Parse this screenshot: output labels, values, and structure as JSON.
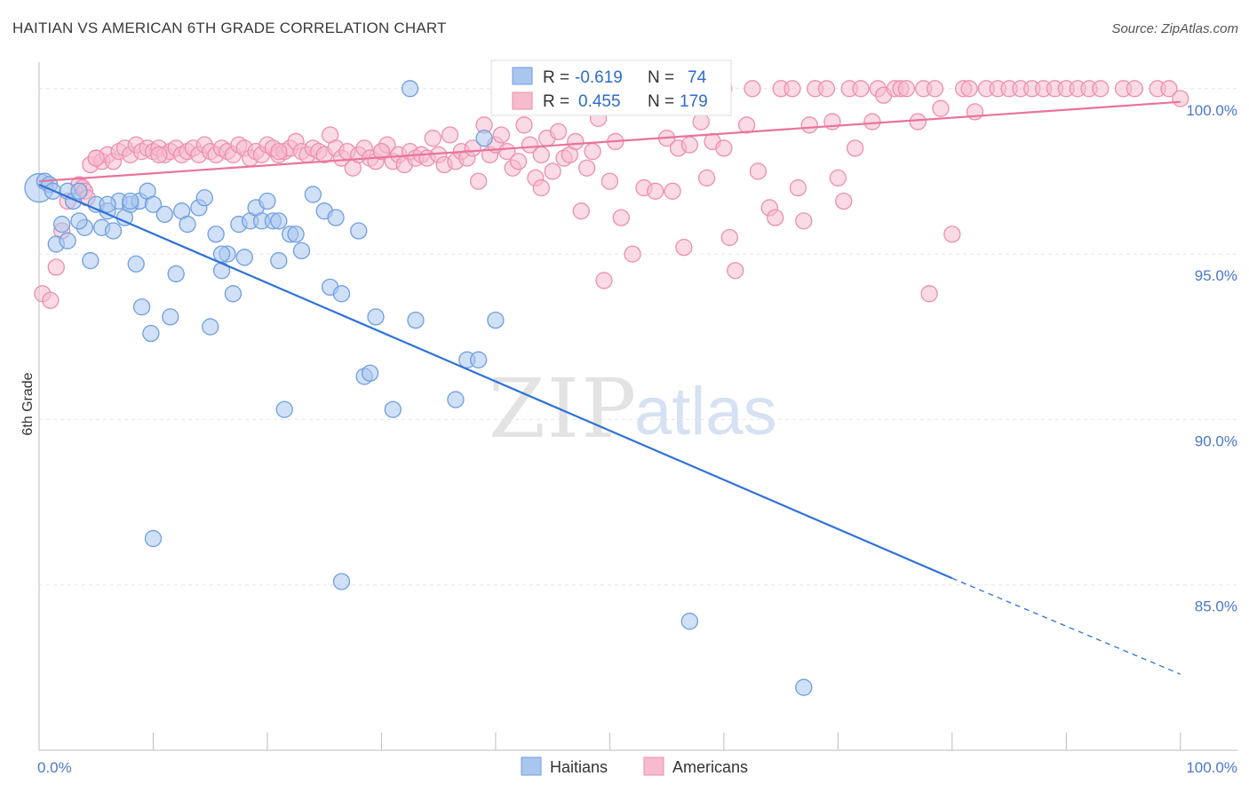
{
  "title": "HAITIAN VS AMERICAN 6TH GRADE CORRELATION CHART",
  "source": "Source: ZipAtlas.com",
  "watermark": {
    "part1": "ZIP",
    "part2": "atlas"
  },
  "colors": {
    "blue_fill": "#a9c6ef",
    "blue_stroke": "#6f9fe0",
    "blue_line": "#2f72d6",
    "pink_fill": "#f6bccd",
    "pink_stroke": "#ec8fae",
    "pink_line": "#e9739b",
    "grid": "#e6e6e6",
    "axis_label": "#4a78c8"
  },
  "legend": {
    "rows": [
      {
        "r_label": "R =",
        "r_value": "-0.619",
        "n_label": "N =",
        "n_value": "74",
        "series": "blue"
      },
      {
        "r_label": "R =",
        "r_value": "0.455",
        "n_label": "N =",
        "n_value": "179",
        "series": "pink"
      }
    ]
  },
  "bottom_legend": [
    {
      "label": "Haitians",
      "series": "blue"
    },
    {
      "label": "Americans",
      "series": "pink"
    }
  ],
  "chart_data": {
    "type": "scatter",
    "title": "HAITIAN VS AMERICAN 6TH GRADE CORRELATION CHART",
    "xlabel": "",
    "ylabel": "6th Grade",
    "xlim": [
      0,
      105
    ],
    "ylim": [
      80,
      100.8
    ],
    "x_tick_labels": [
      "0.0%",
      "100.0%"
    ],
    "y_ticks": [
      85,
      90,
      95,
      100
    ],
    "y_tick_labels": [
      "85.0%",
      "90.0%",
      "95.0%",
      "100.0%"
    ],
    "grid": true,
    "series": [
      {
        "name": "Haitians",
        "color": "blue",
        "trend": {
          "x0": 0,
          "y0": 97.1,
          "x1": 80,
          "y1": 85.2,
          "dash_to_x": 100,
          "dash_to_y": 82.3
        },
        "points": [
          [
            0,
            97.0
          ],
          [
            0.5,
            97.2
          ],
          [
            0.9,
            97.1
          ],
          [
            1.2,
            96.9
          ],
          [
            1.5,
            95.3
          ],
          [
            2.0,
            95.9
          ],
          [
            2.5,
            95.4
          ],
          [
            2.5,
            96.9
          ],
          [
            3.0,
            96.6
          ],
          [
            3.5,
            96.9
          ],
          [
            4.0,
            95.8
          ],
          [
            4.5,
            94.8
          ],
          [
            5.0,
            96.5
          ],
          [
            5.5,
            95.8
          ],
          [
            6.0,
            96.3
          ],
          [
            6.5,
            95.7
          ],
          [
            7.0,
            96.6
          ],
          [
            7.5,
            96.1
          ],
          [
            8.0,
            96.5
          ],
          [
            8.5,
            94.7
          ],
          [
            8.8,
            96.6
          ],
          [
            9.0,
            93.4
          ],
          [
            9.5,
            96.9
          ],
          [
            9.8,
            92.6
          ],
          [
            10.0,
            96.5
          ],
          [
            11.0,
            96.2
          ],
          [
            12.0,
            94.4
          ],
          [
            12.5,
            96.3
          ],
          [
            13.0,
            95.9
          ],
          [
            14.0,
            96.4
          ],
          [
            14.5,
            96.7
          ],
          [
            15.0,
            92.8
          ],
          [
            15.5,
            95.6
          ],
          [
            16.0,
            94.5
          ],
          [
            16.5,
            95.0
          ],
          [
            17.0,
            93.8
          ],
          [
            17.5,
            95.9
          ],
          [
            18.0,
            94.9
          ],
          [
            18.5,
            96.0
          ],
          [
            19.0,
            96.4
          ],
          [
            19.5,
            96.0
          ],
          [
            20.0,
            96.6
          ],
          [
            20.5,
            96.0
          ],
          [
            21.0,
            96.0
          ],
          [
            22.0,
            95.6
          ],
          [
            22.5,
            95.6
          ],
          [
            23.0,
            95.1
          ],
          [
            24.0,
            96.8
          ],
          [
            25.0,
            96.3
          ],
          [
            25.5,
            94.0
          ],
          [
            26.0,
            96.1
          ],
          [
            26.5,
            93.8
          ],
          [
            28.0,
            95.7
          ],
          [
            28.5,
            91.3
          ],
          [
            29.0,
            91.4
          ],
          [
            29.5,
            93.1
          ],
          [
            31.0,
            90.3
          ],
          [
            32.5,
            100.0
          ],
          [
            33.0,
            93.0
          ],
          [
            36.5,
            90.6
          ],
          [
            37.5,
            91.8
          ],
          [
            38.5,
            91.8
          ],
          [
            39.0,
            98.5
          ],
          [
            40.0,
            93.0
          ],
          [
            10.0,
            86.4
          ],
          [
            21.5,
            90.3
          ],
          [
            26.5,
            85.1
          ],
          [
            57.0,
            83.9
          ],
          [
            67.0,
            81.9
          ],
          [
            6.0,
            96.5
          ],
          [
            8.0,
            96.6
          ],
          [
            11.5,
            93.1
          ],
          [
            16.0,
            95.0
          ],
          [
            21.0,
            94.8
          ],
          [
            3.5,
            96.0
          ]
        ]
      },
      {
        "name": "Americans",
        "color": "pink",
        "trend": {
          "x0": 0,
          "y0": 97.2,
          "x1": 100,
          "y1": 99.6
        },
        "points": [
          [
            0.3,
            93.8
          ],
          [
            1.0,
            93.6
          ],
          [
            1.5,
            94.6
          ],
          [
            2.0,
            95.7
          ],
          [
            2.5,
            96.6
          ],
          [
            3.5,
            97.1
          ],
          [
            3.8,
            97.0
          ],
          [
            4.0,
            96.9
          ],
          [
            4.2,
            96.7
          ],
          [
            4.5,
            97.7
          ],
          [
            5.0,
            97.9
          ],
          [
            5.5,
            97.8
          ],
          [
            6.0,
            98.0
          ],
          [
            6.5,
            97.8
          ],
          [
            7.0,
            98.1
          ],
          [
            7.5,
            98.2
          ],
          [
            8.0,
            98.0
          ],
          [
            8.5,
            98.3
          ],
          [
            9.0,
            98.1
          ],
          [
            9.5,
            98.2
          ],
          [
            10.0,
            98.1
          ],
          [
            10.5,
            98.2
          ],
          [
            11.0,
            98.0
          ],
          [
            11.5,
            98.1
          ],
          [
            12.0,
            98.2
          ],
          [
            12.5,
            98.0
          ],
          [
            13.0,
            98.1
          ],
          [
            13.5,
            98.2
          ],
          [
            14.0,
            98.0
          ],
          [
            14.5,
            98.3
          ],
          [
            15.0,
            98.1
          ],
          [
            15.5,
            98.0
          ],
          [
            16.0,
            98.2
          ],
          [
            16.5,
            98.1
          ],
          [
            17.0,
            98.0
          ],
          [
            17.5,
            98.3
          ],
          [
            18.0,
            98.2
          ],
          [
            18.5,
            97.9
          ],
          [
            19.0,
            98.1
          ],
          [
            19.5,
            98.0
          ],
          [
            20.0,
            98.3
          ],
          [
            20.5,
            98.2
          ],
          [
            21.0,
            98.0
          ],
          [
            21.5,
            98.1
          ],
          [
            22.0,
            98.2
          ],
          [
            22.5,
            98.4
          ],
          [
            23.0,
            98.1
          ],
          [
            23.5,
            98.0
          ],
          [
            24.0,
            98.2
          ],
          [
            24.5,
            98.1
          ],
          [
            25.0,
            98.0
          ],
          [
            25.5,
            98.6
          ],
          [
            26.0,
            98.2
          ],
          [
            26.5,
            97.9
          ],
          [
            27.0,
            98.1
          ],
          [
            27.5,
            97.6
          ],
          [
            28.0,
            98.0
          ],
          [
            28.5,
            98.2
          ],
          [
            29.0,
            97.9
          ],
          [
            29.5,
            97.8
          ],
          [
            30.0,
            98.1
          ],
          [
            30.5,
            98.3
          ],
          [
            31.0,
            97.8
          ],
          [
            31.5,
            98.0
          ],
          [
            32.0,
            97.7
          ],
          [
            32.5,
            98.1
          ],
          [
            33.0,
            97.9
          ],
          [
            33.5,
            98.0
          ],
          [
            34.0,
            97.9
          ],
          [
            34.5,
            98.5
          ],
          [
            35.0,
            98.0
          ],
          [
            35.5,
            97.7
          ],
          [
            36.0,
            98.6
          ],
          [
            36.5,
            97.8
          ],
          [
            37.0,
            98.1
          ],
          [
            37.5,
            97.9
          ],
          [
            38.0,
            98.2
          ],
          [
            38.5,
            97.2
          ],
          [
            39.0,
            98.9
          ],
          [
            39.5,
            98.0
          ],
          [
            40.0,
            98.3
          ],
          [
            40.5,
            98.6
          ],
          [
            41.0,
            98.1
          ],
          [
            41.5,
            97.6
          ],
          [
            42.0,
            97.8
          ],
          [
            42.5,
            98.9
          ],
          [
            43.0,
            98.3
          ],
          [
            43.5,
            97.3
          ],
          [
            44.0,
            97.0
          ],
          [
            44.5,
            98.5
          ],
          [
            45.0,
            97.5
          ],
          [
            45.5,
            98.7
          ],
          [
            46.0,
            97.9
          ],
          [
            46.5,
            98.0
          ],
          [
            47.0,
            98.4
          ],
          [
            47.5,
            96.3
          ],
          [
            48.0,
            97.6
          ],
          [
            48.5,
            98.1
          ],
          [
            49.0,
            99.1
          ],
          [
            49.5,
            94.2
          ],
          [
            50.0,
            97.2
          ],
          [
            50.5,
            98.4
          ],
          [
            51.0,
            96.1
          ],
          [
            52.0,
            95.0
          ],
          [
            53.0,
            97.0
          ],
          [
            54.0,
            96.9
          ],
          [
            55.0,
            98.5
          ],
          [
            55.5,
            96.9
          ],
          [
            56.0,
            98.2
          ],
          [
            56.5,
            95.2
          ],
          [
            57.0,
            98.3
          ],
          [
            58.0,
            99.0
          ],
          [
            58.5,
            97.3
          ],
          [
            59.0,
            98.4
          ],
          [
            60.0,
            98.2
          ],
          [
            60.5,
            95.5
          ],
          [
            61.0,
            94.5
          ],
          [
            62.0,
            98.9
          ],
          [
            63.0,
            97.5
          ],
          [
            64.0,
            96.4
          ],
          [
            64.5,
            96.1
          ],
          [
            65.0,
            100.0
          ],
          [
            66.0,
            100.0
          ],
          [
            66.5,
            97.0
          ],
          [
            67.0,
            96.0
          ],
          [
            67.5,
            98.9
          ],
          [
            68.0,
            100.0
          ],
          [
            69.0,
            100.0
          ],
          [
            69.5,
            99.0
          ],
          [
            70.0,
            97.3
          ],
          [
            70.5,
            96.6
          ],
          [
            71.0,
            100.0
          ],
          [
            71.5,
            98.2
          ],
          [
            72.0,
            100.0
          ],
          [
            73.0,
            99.0
          ],
          [
            73.5,
            100.0
          ],
          [
            74.0,
            99.8
          ],
          [
            75.0,
            100.0
          ],
          [
            75.5,
            100.0
          ],
          [
            76.0,
            100.0
          ],
          [
            77.0,
            99.0
          ],
          [
            77.5,
            100.0
          ],
          [
            78.0,
            93.8
          ],
          [
            78.5,
            100.0
          ],
          [
            79.0,
            99.4
          ],
          [
            80.0,
            95.6
          ],
          [
            81.0,
            100.0
          ],
          [
            81.5,
            100.0
          ],
          [
            82.0,
            99.3
          ],
          [
            83.0,
            100.0
          ],
          [
            84.0,
            100.0
          ],
          [
            85.0,
            100.0
          ],
          [
            86.0,
            100.0
          ],
          [
            87.0,
            100.0
          ],
          [
            88.0,
            100.0
          ],
          [
            89.0,
            100.0
          ],
          [
            90.0,
            100.0
          ],
          [
            91.0,
            100.0
          ],
          [
            92.0,
            100.0
          ],
          [
            93.0,
            100.0
          ],
          [
            95.0,
            100.0
          ],
          [
            96.0,
            100.0
          ],
          [
            98.0,
            100.0
          ],
          [
            99.0,
            100.0
          ],
          [
            100.0,
            99.7
          ],
          [
            10.5,
            98.0
          ],
          [
            21.0,
            98.1
          ],
          [
            30.0,
            98.1
          ],
          [
            60.0,
            100.0
          ],
          [
            62.5,
            100.0
          ],
          [
            44.0,
            98.0
          ],
          [
            5.0,
            97.9
          ]
        ]
      }
    ]
  }
}
